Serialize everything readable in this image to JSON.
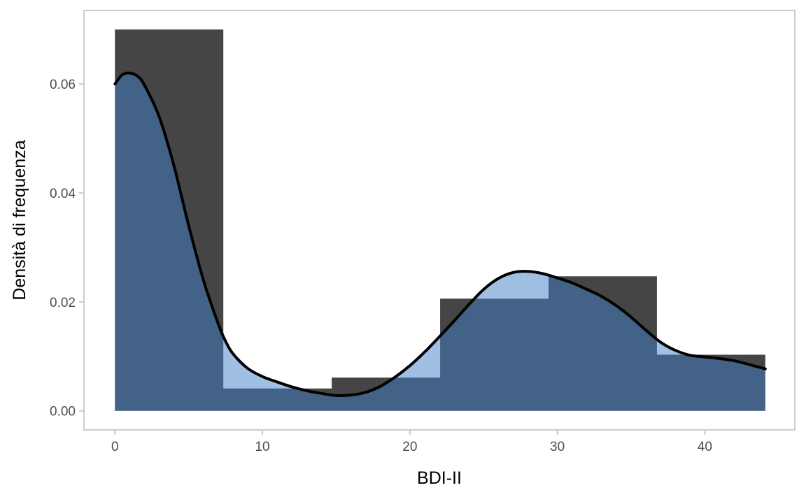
{
  "chart_data": {
    "type": "histogram-density",
    "xlabel": "BDI-II",
    "ylabel": "Densità di frequenza",
    "xlim": [
      -2.1,
      46.1
    ],
    "ylim": [
      -0.0035,
      0.0735
    ],
    "x_ticks": [
      0,
      10,
      20,
      30,
      40
    ],
    "x_tick_labels": [
      "0",
      "10",
      "20",
      "30",
      "40"
    ],
    "y_ticks": [
      0,
      0.02,
      0.04,
      0.06
    ],
    "y_tick_labels": [
      "0.00",
      "0.02",
      "0.04",
      "0.06"
    ],
    "grid": false,
    "histogram": {
      "bins": [
        {
          "x0": 0.0,
          "x1": 7.35,
          "density": 0.07
        },
        {
          "x0": 7.35,
          "x1": 14.7,
          "density": 0.0041
        },
        {
          "x0": 14.7,
          "x1": 22.05,
          "density": 0.0061
        },
        {
          "x0": 22.05,
          "x1": 29.4,
          "density": 0.0206
        },
        {
          "x0": 29.4,
          "x1": 36.75,
          "density": 0.0247
        },
        {
          "x0": 36.75,
          "x1": 44.1,
          "density": 0.0103
        }
      ]
    },
    "density_curve": {
      "x": [
        0,
        0.5,
        1,
        1.5,
        2,
        3,
        4,
        5,
        6,
        7,
        7.5,
        8,
        9,
        10,
        11,
        12,
        13,
        14,
        15,
        16,
        17,
        18,
        19,
        20,
        21,
        22,
        23,
        24,
        25,
        26,
        27,
        28,
        29,
        30,
        31,
        32,
        33,
        34,
        35,
        36,
        37,
        38,
        39,
        40,
        41,
        42,
        43,
        44.1
      ],
      "y": [
        0.06,
        0.0617,
        0.062,
        0.0615,
        0.0598,
        0.054,
        0.045,
        0.034,
        0.024,
        0.016,
        0.0128,
        0.0105,
        0.0078,
        0.0063,
        0.0053,
        0.0044,
        0.0037,
        0.0032,
        0.0028,
        0.0029,
        0.0034,
        0.0045,
        0.0062,
        0.0083,
        0.0108,
        0.0136,
        0.0165,
        0.0195,
        0.0223,
        0.0243,
        0.0254,
        0.0256,
        0.0252,
        0.0244,
        0.0235,
        0.0223,
        0.021,
        0.0193,
        0.0172,
        0.0148,
        0.0126,
        0.0111,
        0.0102,
        0.0099,
        0.0096,
        0.0092,
        0.0085,
        0.0077
      ]
    },
    "colors": {
      "bar_fill": "#454545",
      "density_fill": "#9fbfe3",
      "overlap_fill": "#426387",
      "curve_stroke": "#000000",
      "panel_border": "#cccccc",
      "tick_color": "#cccccc"
    }
  }
}
